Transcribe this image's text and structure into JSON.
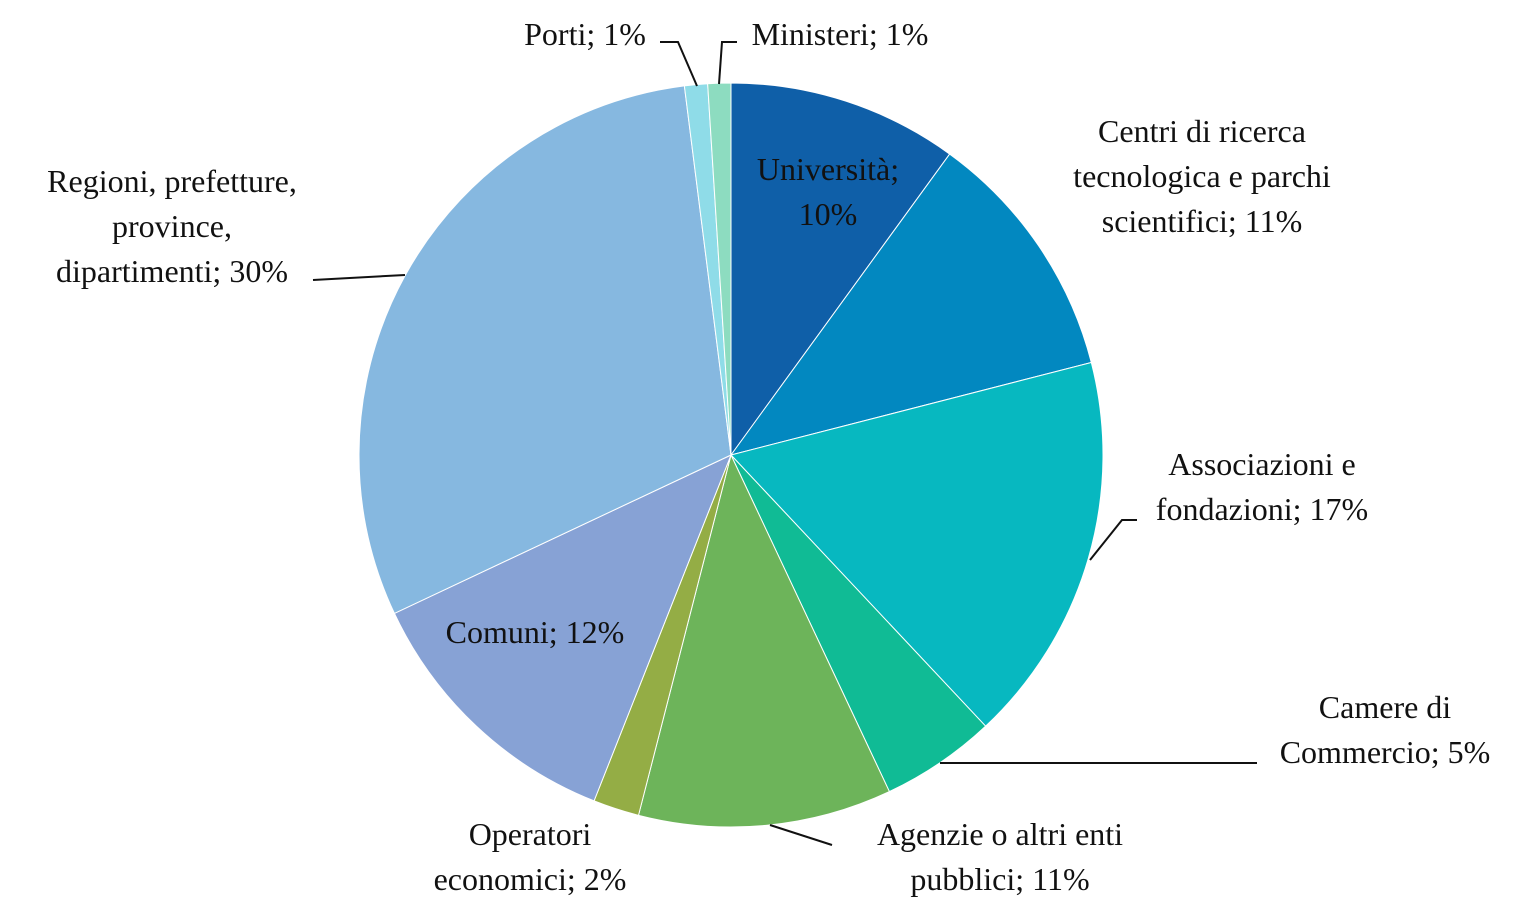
{
  "chart_data": {
    "type": "pie",
    "value_labels": [
      [
        "Università;",
        "10%"
      ],
      [
        "Centri di ricerca",
        "tecnologica e parchi",
        "scientifici; 11%"
      ],
      [
        "Associazioni e",
        "fondazioni; 17%"
      ],
      [
        "Camere di",
        "Commercio; 5%"
      ],
      [
        "Agenzie o altri enti",
        "pubblici; 11%"
      ],
      [
        "Operatori",
        "economici; 2%"
      ],
      [
        "Comuni; 12%"
      ],
      [
        "Regioni, prefetture,",
        "province,",
        "dipartimenti; 30%"
      ],
      [
        "Porti; 1%"
      ],
      [
        "Ministeri; 1%"
      ]
    ],
    "values": [
      10,
      11,
      17,
      5,
      11,
      2,
      12,
      30,
      1,
      1
    ],
    "colors": [
      "#0f5fa8",
      "#0288c0",
      "#07b8c0",
      "#10bb95",
      "#6db45a",
      "#94ad45",
      "#87a2d5",
      "#86b8e0",
      "#8fdce8",
      "#8ddcc0"
    ]
  }
}
